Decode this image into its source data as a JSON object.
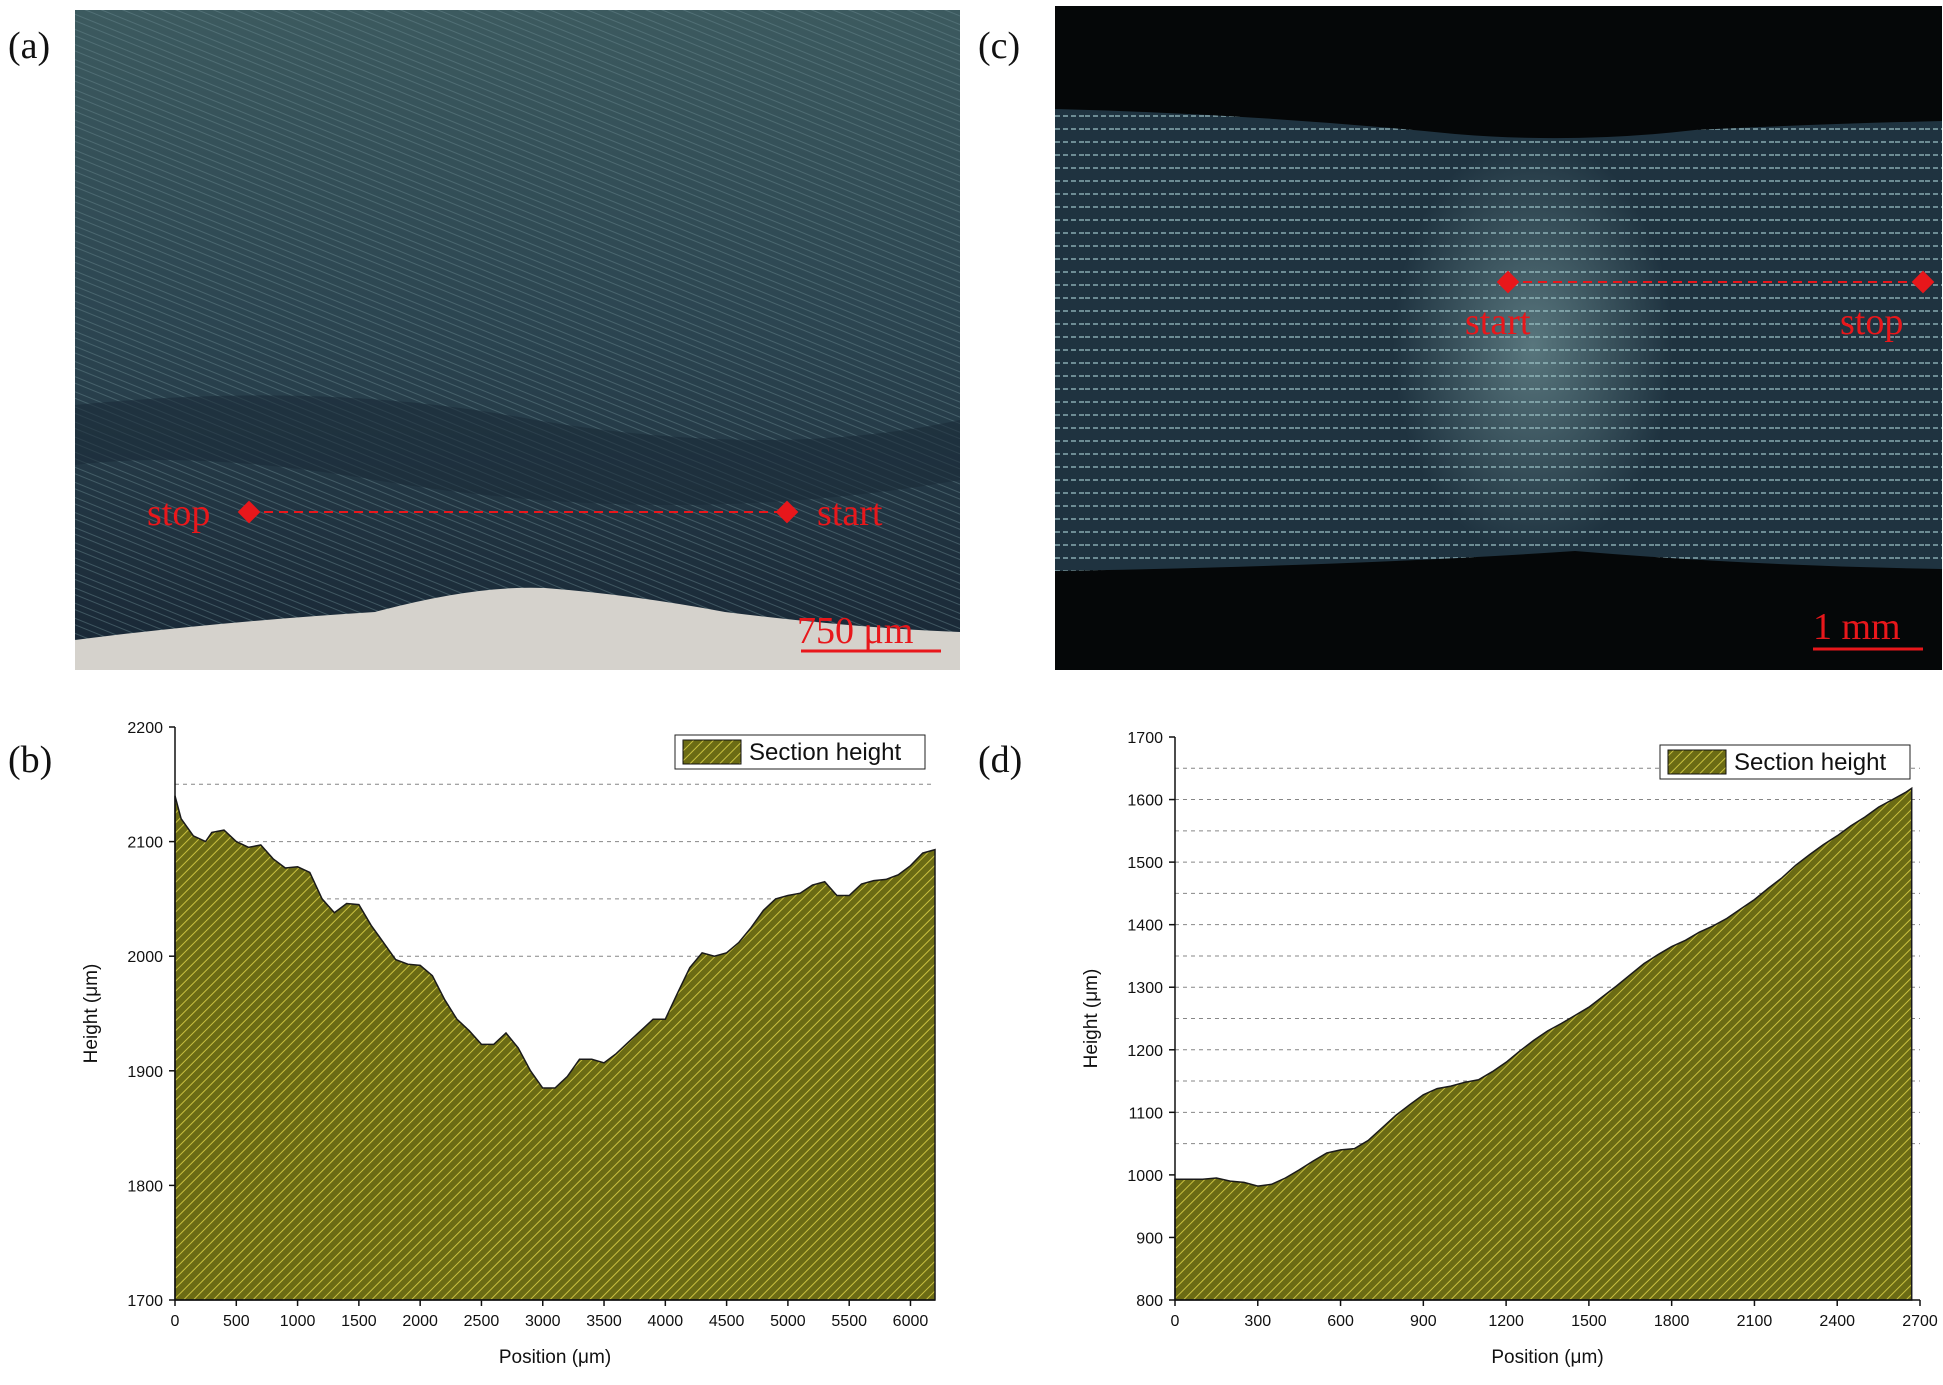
{
  "panels": {
    "a": {
      "letter": "(a)",
      "scale_bar": "750 μm",
      "stop_label": "stop",
      "start_label": "start"
    },
    "b": {
      "letter": "(b)"
    },
    "c": {
      "letter": "(c)",
      "scale_bar": "1 mm",
      "start_label": "start",
      "stop_label": "stop"
    },
    "d": {
      "letter": "(d)"
    }
  },
  "colors": {
    "fill": "#6b6b14",
    "hatch": "#c9c040",
    "marker": "#e8171b"
  },
  "chart_data": [
    {
      "id": "b",
      "type": "area",
      "title": "",
      "xlabel": "Position (μm)",
      "ylabel": "Height (μm)",
      "xlim": [
        0,
        6200
      ],
      "ylim": [
        1700,
        2200
      ],
      "xticks": [
        0,
        500,
        1000,
        1500,
        2000,
        2500,
        3000,
        3500,
        4000,
        4500,
        5000,
        5500,
        6000
      ],
      "yticks": [
        1700,
        1800,
        1900,
        2000,
        2100,
        2200
      ],
      "grid_y": [
        2000,
        2050,
        2100,
        2150
      ],
      "legend_position": "top-right",
      "series": [
        {
          "name": "Section height",
          "x": [
            0,
            50,
            150,
            250,
            300,
            400,
            500,
            600,
            700,
            800,
            900,
            1000,
            1100,
            1200,
            1300,
            1400,
            1500,
            1600,
            1700,
            1800,
            1900,
            2000,
            2100,
            2200,
            2300,
            2400,
            2500,
            2600,
            2700,
            2800,
            2900,
            3000,
            3100,
            3200,
            3300,
            3400,
            3500,
            3600,
            3700,
            3800,
            3900,
            4000,
            4100,
            4200,
            4300,
            4400,
            4500,
            4600,
            4700,
            4800,
            4900,
            5000,
            5100,
            5200,
            5300,
            5400,
            5500,
            5600,
            5700,
            5800,
            5900,
            6000,
            6100,
            6200
          ],
          "y": [
            2140,
            2120,
            2105,
            2100,
            2108,
            2110,
            2100,
            2095,
            2097,
            2085,
            2077,
            2078,
            2073,
            2050,
            2038,
            2046,
            2045,
            2027,
            2012,
            1997,
            1993,
            1992,
            1983,
            1962,
            1945,
            1935,
            1923,
            1923,
            1933,
            1920,
            1900,
            1885,
            1885,
            1895,
            1910,
            1910,
            1907,
            1915,
            1925,
            1935,
            1945,
            1945,
            1968,
            1990,
            2003,
            2000,
            2003,
            2012,
            2025,
            2040,
            2050,
            2053,
            2055,
            2062,
            2065,
            2053,
            2053,
            2063,
            2066,
            2067,
            2071,
            2079,
            2090,
            2093
          ]
        }
      ]
    },
    {
      "id": "d",
      "type": "area",
      "title": "",
      "xlabel": "Position (μm)",
      "ylabel": "Height (μm)",
      "xlim": [
        0,
        2700
      ],
      "ylim": [
        800,
        1700
      ],
      "xticks": [
        0,
        300,
        600,
        900,
        1200,
        1500,
        1800,
        2100,
        2400,
        2700
      ],
      "yticks": [
        800,
        900,
        1000,
        1100,
        1200,
        1300,
        1400,
        1500,
        1600,
        1700
      ],
      "grid_y": [
        1050,
        1100,
        1150,
        1200,
        1250,
        1300,
        1350,
        1400,
        1450,
        1500,
        1550,
        1600,
        1650
      ],
      "legend_position": "top-right",
      "series": [
        {
          "name": "Section height",
          "x": [
            0,
            100,
            150,
            200,
            250,
            300,
            350,
            400,
            450,
            500,
            550,
            600,
            650,
            700,
            750,
            800,
            850,
            900,
            950,
            1000,
            1050,
            1100,
            1150,
            1200,
            1250,
            1300,
            1350,
            1400,
            1450,
            1500,
            1550,
            1600,
            1650,
            1700,
            1750,
            1800,
            1850,
            1900,
            1950,
            2000,
            2050,
            2100,
            2150,
            2200,
            2250,
            2300,
            2350,
            2400,
            2450,
            2500,
            2550,
            2600,
            2650,
            2670
          ],
          "y": [
            993,
            993,
            995,
            990,
            988,
            982,
            985,
            995,
            1008,
            1022,
            1035,
            1040,
            1042,
            1055,
            1075,
            1095,
            1112,
            1128,
            1138,
            1142,
            1148,
            1152,
            1165,
            1180,
            1198,
            1215,
            1230,
            1242,
            1255,
            1268,
            1285,
            1302,
            1320,
            1338,
            1352,
            1365,
            1375,
            1388,
            1398,
            1410,
            1425,
            1440,
            1458,
            1475,
            1495,
            1512,
            1528,
            1542,
            1558,
            1572,
            1588,
            1600,
            1612,
            1618
          ]
        }
      ]
    }
  ]
}
